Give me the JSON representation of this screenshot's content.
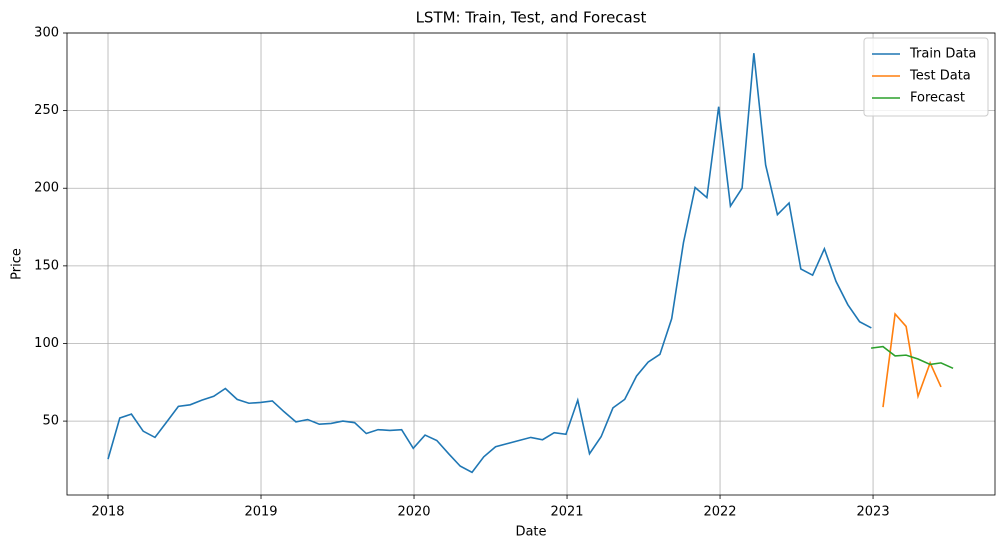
{
  "chart_data": {
    "type": "line",
    "title": "LSTM: Train, Test, and Forecast",
    "x_label": "Date",
    "y_label": "Price",
    "xlim": [
      2017.732,
      2023.797
    ],
    "ylim": [
      2.4,
      300
    ],
    "xticks": [
      2018,
      2019,
      2020,
      2021,
      2022,
      2023
    ],
    "yticks": [
      50,
      100,
      150,
      200,
      250,
      300
    ],
    "grid": true,
    "legend": "upper right",
    "series": [
      {
        "name": "Train Data",
        "color": "#1f77b4",
        "x": [
          2018.0,
          2018.077,
          2018.153,
          2018.23,
          2018.307,
          2018.384,
          2018.46,
          2018.537,
          2018.614,
          2018.691,
          2018.767,
          2018.844,
          2018.921,
          2018.998,
          2019.074,
          2019.151,
          2019.228,
          2019.305,
          2019.381,
          2019.458,
          2019.535,
          2019.612,
          2019.688,
          2019.765,
          2019.842,
          2019.919,
          2019.995,
          2020.072,
          2020.149,
          2020.226,
          2020.302,
          2020.379,
          2020.456,
          2020.533,
          2020.609,
          2020.686,
          2020.763,
          2020.84,
          2020.916,
          2020.993,
          2021.07,
          2021.147,
          2021.223,
          2021.3,
          2021.377,
          2021.454,
          2021.53,
          2021.607,
          2021.684,
          2021.761,
          2021.837,
          2021.914,
          2021.991,
          2022.068,
          2022.144,
          2022.221,
          2022.298,
          2022.375,
          2022.451,
          2022.528,
          2022.605,
          2022.682,
          2022.758,
          2022.835,
          2022.912,
          2022.989
        ],
        "values": [
          25.5,
          52,
          54.5,
          43.5,
          39.5,
          49.5,
          59.5,
          60.5,
          63.5,
          66,
          71,
          64,
          61.5,
          62,
          63,
          56,
          49.5,
          51,
          48,
          48.5,
          50,
          49,
          42,
          44.5,
          44,
          44.5,
          32.5,
          41,
          37.5,
          29,
          21,
          17,
          27,
          33.5,
          35.5,
          37.5,
          39.5,
          38,
          42.5,
          41.5,
          63.5,
          29,
          40,
          58.5,
          64,
          79,
          88,
          93,
          116,
          165,
          200.5,
          194,
          252.5,
          188.5,
          200,
          287,
          215,
          183,
          190.5,
          148,
          144,
          161,
          140,
          125,
          114,
          110
        ]
      },
      {
        "name": "Test Data",
        "color": "#ff7f0e",
        "x": [
          2023.065,
          2023.144,
          2023.216,
          2023.294,
          2023.373,
          2023.444
        ],
        "values": [
          59,
          119,
          111,
          66,
          87.5,
          72
        ]
      },
      {
        "name": "Forecast",
        "color": "#2ca02c",
        "x": [
          2022.987,
          2023.065,
          2023.144,
          2023.216,
          2023.294,
          2023.373,
          2023.444,
          2023.523
        ],
        "values": [
          97,
          98,
          92,
          92.5,
          90,
          86.5,
          87.5,
          84
        ]
      }
    ]
  }
}
